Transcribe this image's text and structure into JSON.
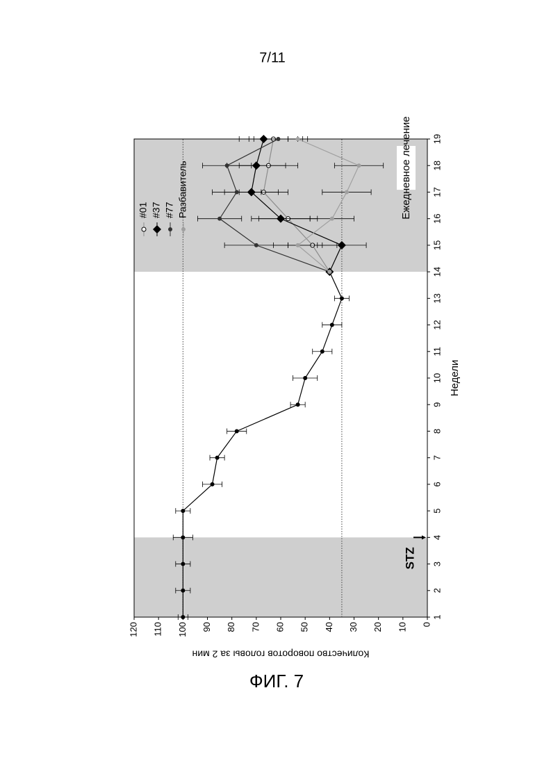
{
  "header": "7/11",
  "caption": "ФИГ. 7",
  "chart_data": {
    "type": "line",
    "xlabel": "Недели",
    "ylabel": "Количество поворотов головы за 2 мин",
    "x": [
      1,
      2,
      3,
      4,
      5,
      6,
      7,
      8,
      9,
      10,
      11,
      12,
      13,
      14,
      15,
      16,
      17,
      18,
      19
    ],
    "xlim": [
      1,
      19
    ],
    "xticks": [
      1,
      2,
      3,
      4,
      5,
      6,
      7,
      8,
      9,
      10,
      11,
      12,
      13,
      14,
      15,
      16,
      17,
      18,
      19
    ],
    "ylim": [
      0,
      120
    ],
    "yticks": [
      0,
      10,
      20,
      30,
      40,
      50,
      60,
      70,
      80,
      90,
      100,
      110,
      120
    ],
    "reference_lines": [
      100,
      35
    ],
    "shaded_regions": [
      [
        1,
        4
      ],
      [
        14,
        19
      ]
    ],
    "region_label": "Ежедневное лечение",
    "annotation": "STZ",
    "annotation_x": 4,
    "series": [
      {
        "color": "#000000",
        "marker": "dot",
        "values": [
          100,
          100,
          100,
          100,
          100,
          88,
          86,
          78,
          53,
          50,
          43,
          39,
          35,
          40,
          null,
          null,
          null,
          null,
          null
        ],
        "errors": [
          2,
          3,
          3,
          4,
          3,
          4,
          3,
          4,
          3,
          5,
          4,
          4,
          3,
          null,
          null,
          null,
          null,
          null,
          null
        ]
      },
      {
        "name": "#01",
        "color": "#8c8c8c",
        "marker": "open-circle",
        "values": [
          null,
          null,
          null,
          null,
          null,
          null,
          null,
          null,
          null,
          null,
          null,
          null,
          null,
          40,
          47,
          57,
          67,
          65,
          63
        ],
        "errors": [
          null,
          null,
          null,
          null,
          null,
          null,
          null,
          null,
          null,
          null,
          null,
          null,
          null,
          null,
          10,
          12,
          10,
          12,
          10
        ]
      },
      {
        "name": "#37",
        "color": "#000000",
        "marker": "diamond",
        "values": [
          null,
          null,
          null,
          null,
          null,
          null,
          null,
          null,
          null,
          null,
          null,
          null,
          null,
          40,
          35,
          60,
          72,
          70,
          67
        ],
        "errors": [
          null,
          null,
          null,
          null,
          null,
          null,
          null,
          null,
          null,
          null,
          null,
          null,
          null,
          null,
          10,
          12,
          11,
          12,
          10
        ]
      },
      {
        "name": "#77",
        "color": "#333333",
        "marker": "dot",
        "values": [
          null,
          null,
          null,
          null,
          null,
          null,
          null,
          null,
          null,
          null,
          null,
          null,
          null,
          40,
          70,
          85,
          78,
          82,
          61
        ],
        "errors": [
          null,
          null,
          null,
          null,
          null,
          null,
          null,
          null,
          null,
          null,
          null,
          null,
          null,
          null,
          13,
          9,
          10,
          10,
          10
        ]
      },
      {
        "name": "Разбавитель",
        "color": "#a0a0a0",
        "marker": "dot",
        "values": [
          null,
          null,
          null,
          null,
          null,
          null,
          null,
          null,
          null,
          null,
          null,
          null,
          null,
          40,
          53,
          39,
          33,
          28,
          53
        ],
        "errors": [
          null,
          null,
          null,
          null,
          null,
          null,
          null,
          null,
          null,
          null,
          null,
          null,
          null,
          null,
          10,
          9,
          10,
          10,
          4
        ]
      }
    ]
  }
}
